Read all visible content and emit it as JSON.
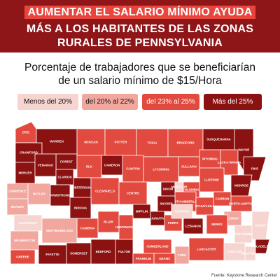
{
  "header": {
    "line1": "AUMENTAR EL SALARIO MÍNIMO AYUDA",
    "line2": "MÁS A LOS HABITANTES DE LAS ZONAS",
    "line3": "RURALES DE PENNSYLVANIA"
  },
  "subtitle": {
    "line1": "Porcentaje de trabajadores que se beneficiarían",
    "line2": "de un salario mínimo de $15/Hora"
  },
  "colors": {
    "banner": "#8e1518",
    "highlight": "#e8453c",
    "tier1": "#f6d4cf",
    "tier2": "#f1a79e",
    "tier3": "#e24a3f",
    "tier4": "#8c1212"
  },
  "legend": [
    {
      "label": "Menos del 20%",
      "tier": "tier1"
    },
    {
      "label": "del 20% al 22%",
      "tier": "tier2"
    },
    {
      "label": "del 23% al 25%",
      "tier": "tier3"
    },
    {
      "label": "Más del 25%",
      "tier": "tier4"
    }
  ],
  "counties": [
    {
      "name": "ERIE",
      "tier": "tier3"
    },
    {
      "name": "CRAWFORD",
      "tier": "tier4"
    },
    {
      "name": "WARREN",
      "tier": "tier4"
    },
    {
      "name": "MCKEAN",
      "tier": "tier3"
    },
    {
      "name": "POTTER",
      "tier": "tier3"
    },
    {
      "name": "TIOGA",
      "tier": "tier3"
    },
    {
      "name": "BRADFORD",
      "tier": "tier3"
    },
    {
      "name": "SUSQUEHANNA",
      "tier": "tier4"
    },
    {
      "name": "WAYNE",
      "tier": "tier4"
    },
    {
      "name": "FOREST",
      "tier": "tier4"
    },
    {
      "name": "ELK",
      "tier": "tier3"
    },
    {
      "name": "CAMERON",
      "tier": "tier4"
    },
    {
      "name": "LYCOMING",
      "tier": "tier3"
    },
    {
      "name": "SULLIVAN",
      "tier": "tier3"
    },
    {
      "name": "WYOMING",
      "tier": "tier3"
    },
    {
      "name": "LACKA-WANNA",
      "tier": "tier3"
    },
    {
      "name": "PIKE",
      "tier": "tier4"
    },
    {
      "name": "MERCER",
      "tier": "tier4"
    },
    {
      "name": "VENANGO",
      "tier": "tier4"
    },
    {
      "name": "CLARION",
      "tier": "tier4"
    },
    {
      "name": "JEFFERSON",
      "tier": "tier4"
    },
    {
      "name": "CLINTON",
      "tier": "tier3"
    },
    {
      "name": "COLUMBIA",
      "tier": "tier3"
    },
    {
      "name": "LUZERNE",
      "tier": "tier3"
    },
    {
      "name": "MONROE",
      "tier": "tier4"
    },
    {
      "name": "LAWRENCE",
      "tier": "tier2"
    },
    {
      "name": "BUTLER",
      "tier": "tier2"
    },
    {
      "name": "ARMSTRONG",
      "tier": "tier4"
    },
    {
      "name": "CLEARFIELD",
      "tier": "tier3"
    },
    {
      "name": "CENTRE",
      "tier": "tier3"
    },
    {
      "name": "UNION",
      "tier": "tier4"
    },
    {
      "name": "MONTOUR",
      "tier": "tier1"
    },
    {
      "name": "NORTH-UMBERLAND",
      "tier": "tier3"
    },
    {
      "name": "CARBON",
      "tier": "tier3"
    },
    {
      "name": "NORTH-AMPTON",
      "tier": "tier3"
    },
    {
      "name": "BEAVER",
      "tier": "tier2"
    },
    {
      "name": "ALLEGHENY",
      "tier": "tier1"
    },
    {
      "name": "INDIANA",
      "tier": "tier4"
    },
    {
      "name": "SNYDER",
      "tier": "tier4"
    },
    {
      "name": "SCHUYLKILL",
      "tier": "tier3"
    },
    {
      "name": "LEHIGH",
      "tier": "tier2"
    },
    {
      "name": "CAMBRIA",
      "tier": "tier3"
    },
    {
      "name": "BLAIR",
      "tier": "tier3"
    },
    {
      "name": "MIFFLIN",
      "tier": "tier4"
    },
    {
      "name": "JUNIATA",
      "tier": "tier4"
    },
    {
      "name": "PERRY",
      "tier": "tier3"
    },
    {
      "name": "BERKS",
      "tier": "tier3"
    },
    {
      "name": "WESTMORELAND",
      "tier": "tier2"
    },
    {
      "name": "HUNTINGDON",
      "tier": "tier3"
    },
    {
      "name": "DAUPHIN",
      "tier": "tier1"
    },
    {
      "name": "LEBANON",
      "tier": "tier4"
    },
    {
      "name": "MONT-GOMERY",
      "tier": "tier1"
    },
    {
      "name": "BUCKS",
      "tier": "tier1"
    },
    {
      "name": "WASHINGTON",
      "tier": "tier2"
    },
    {
      "name": "CUMBERLAND",
      "tier": "tier3"
    },
    {
      "name": "LANCASTER",
      "tier": "tier3"
    },
    {
      "name": "CHESTER",
      "tier": "tier1"
    },
    {
      "name": "DELA-WARE",
      "tier": "tier1"
    },
    {
      "name": "PHILADELPHIA",
      "tier": "tier4"
    },
    {
      "name": "GREENE",
      "tier": "tier3"
    },
    {
      "name": "FAYETTE",
      "tier": "tier4"
    },
    {
      "name": "SOMERSET",
      "tier": "tier4"
    },
    {
      "name": "BEDFORD",
      "tier": "tier4"
    },
    {
      "name": "FULTON",
      "tier": "tier4"
    },
    {
      "name": "FRANKLIN",
      "tier": "tier3"
    },
    {
      "name": "ADAMS",
      "tier": "tier3"
    },
    {
      "name": "YORK",
      "tier": "tier2"
    }
  ],
  "source": "Fuente: Keystone Research Center"
}
